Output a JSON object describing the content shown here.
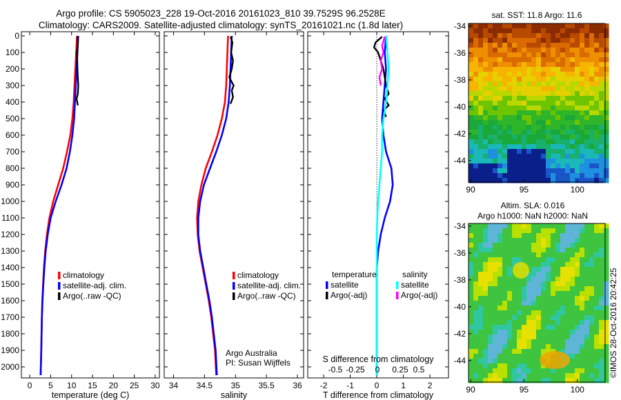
{
  "title_line1": "Argo profile: CS 5905023_228 19-Oct-2016 20161023_810 39.7529S 96.2528E",
  "title_line2": "Climatology: CARS2009. Satellite-adjusted climatology: synTS_20161021.nc (1.8d later)",
  "watermark": "©IMOS 28-Oct-2016 20:42:25",
  "colors": {
    "climatology": "#ff0000",
    "satellite": "#0000ff",
    "argo": "#000000",
    "cyan": "#00ffff",
    "magenta": "#ff00ff"
  },
  "chart_data": [
    {
      "type": "line",
      "name": "temperature-profile",
      "xlabel": "temperature (deg C)",
      "ylabel": "",
      "xlim": [
        -2,
        31
      ],
      "ylim": [
        2050,
        0
      ],
      "xticks": [
        0,
        5,
        10,
        15,
        20,
        25,
        30
      ],
      "yticks": [
        0,
        100,
        200,
        300,
        400,
        500,
        600,
        700,
        800,
        900,
        1000,
        1100,
        1200,
        1300,
        1400,
        1500,
        1600,
        1700,
        1800,
        1900,
        2000
      ],
      "legend": [
        "climatology",
        "satellite-adj. clim.",
        "Argo(..raw -QC)"
      ],
      "series": [
        {
          "name": "climatology",
          "color": "#ff0000",
          "x": [
            11.3,
            11.2,
            11.1,
            10.9,
            10.7,
            10.5,
            10.2,
            9.7,
            8.9,
            8.0,
            6.8,
            5.6,
            4.7,
            4.1,
            3.7,
            3.4,
            3.2,
            3.0,
            2.9,
            2.75,
            2.6
          ],
          "y": [
            0,
            50,
            100,
            200,
            300,
            400,
            500,
            600,
            700,
            800,
            900,
            1000,
            1100,
            1200,
            1300,
            1400,
            1500,
            1600,
            1700,
            1900,
            2050
          ]
        },
        {
          "name": "satellite-adj. clim.",
          "color": "#0000ff",
          "x": [
            11.6,
            11.5,
            11.4,
            11.2,
            11.0,
            10.8,
            10.6,
            10.2,
            9.6,
            8.8,
            7.6,
            6.2,
            5.0,
            4.3,
            3.8,
            3.5,
            3.25,
            3.05,
            2.9,
            2.75,
            2.6
          ],
          "y": [
            0,
            50,
            100,
            200,
            300,
            400,
            500,
            600,
            700,
            800,
            900,
            1000,
            1100,
            1200,
            1300,
            1400,
            1500,
            1600,
            1700,
            1900,
            2050
          ]
        },
        {
          "name": "Argo(..raw -QC)",
          "color": "#000000",
          "x": [
            11.4,
            11.5,
            11.3,
            11.4,
            11.6,
            11.5,
            11.2,
            11.5
          ],
          "y": [
            5,
            50,
            100,
            200,
            300,
            350,
            380,
            420
          ]
        }
      ]
    },
    {
      "type": "line",
      "name": "salinity-profile",
      "xlabel": "salinity",
      "xlim": [
        33.85,
        36.1
      ],
      "ylim": [
        2050,
        0
      ],
      "xticks": [
        34,
        34.5,
        35,
        35.5,
        36
      ],
      "legend": [
        "climatology",
        "satellite-adj. clim.",
        "Argo(..raw -QC)"
      ],
      "annotation": [
        "Argo Australia",
        "PI: Susan Wijffels"
      ],
      "series": [
        {
          "name": "climatology",
          "color": "#ff0000",
          "x": [
            34.88,
            34.87,
            34.86,
            34.85,
            34.83,
            34.78,
            34.71,
            34.62,
            34.52,
            34.45,
            34.4,
            34.38,
            34.39,
            34.42,
            34.47,
            34.52,
            34.57,
            34.61,
            34.64,
            34.67,
            34.69
          ],
          "y": [
            0,
            100,
            200,
            300,
            400,
            500,
            600,
            700,
            800,
            900,
            1000,
            1100,
            1200,
            1300,
            1400,
            1500,
            1600,
            1700,
            1800,
            1900,
            2050
          ]
        },
        {
          "name": "satellite-adj. clim.",
          "color": "#0000ff",
          "x": [
            34.94,
            34.93,
            34.92,
            34.91,
            34.89,
            34.85,
            34.78,
            34.69,
            34.59,
            34.49,
            34.43,
            34.4,
            34.4,
            34.43,
            34.48,
            34.53,
            34.58,
            34.62,
            34.65,
            34.68,
            34.7
          ],
          "y": [
            0,
            100,
            200,
            300,
            400,
            500,
            600,
            700,
            800,
            900,
            1000,
            1100,
            1200,
            1300,
            1400,
            1500,
            1600,
            1700,
            1800,
            1900,
            2050
          ]
        },
        {
          "name": "Argo(..raw -QC)",
          "color": "#000000",
          "x": [
            34.92,
            34.95,
            34.93,
            34.96,
            34.94,
            34.9,
            34.97,
            34.94,
            34.96,
            34.92
          ],
          "y": [
            5,
            40,
            100,
            150,
            200,
            250,
            300,
            330,
            370,
            410
          ]
        }
      ]
    },
    {
      "type": "line",
      "name": "difference-profile",
      "xlabel": "T difference from climatology",
      "x2label": "S difference from climatology",
      "xlim": [
        -2.6,
        2.7
      ],
      "ylim": [
        2050,
        0
      ],
      "xticks": [
        -2,
        -1,
        0,
        1,
        2
      ],
      "x2ticks": [
        "-0.5",
        "-0.25",
        "0",
        "0.25",
        "0.5"
      ],
      "legend_groups": [
        {
          "title": "temperature",
          "items": [
            "satellite",
            "Argo(-adj)"
          ]
        },
        {
          "title": "salinity",
          "items": [
            "satellite",
            "Argo(-adj)"
          ]
        }
      ],
      "series": [
        {
          "name": "temperature satellite",
          "color": "#0000ff",
          "x": [
            0.35,
            0.3,
            0.35,
            0.3,
            0.25,
            0.2,
            0.25,
            0.35,
            0.55,
            0.6,
            0.5,
            0.3,
            0.15,
            0.05,
            0.0,
            0.0,
            0.0,
            0.0,
            0.0,
            0.0,
            0.0
          ],
          "y": [
            0,
            100,
            200,
            300,
            400,
            500,
            600,
            700,
            800,
            900,
            1000,
            1100,
            1200,
            1300,
            1400,
            1500,
            1600,
            1700,
            1800,
            1900,
            2050
          ]
        },
        {
          "name": "temperature Argo(-adj)",
          "color": "#000000",
          "x": [
            0.2,
            -0.05,
            -0.1,
            0.05,
            0.25,
            0.35,
            0.45,
            0.3,
            0.45,
            0.25,
            0.35
          ],
          "y": [
            5,
            40,
            70,
            100,
            200,
            300,
            350,
            380,
            420,
            450,
            490
          ]
        },
        {
          "name": "salinity satellite",
          "color": "#00ffff",
          "x": [
            0.35,
            0.4,
            0.45,
            0.4,
            0.35,
            0.25,
            0.2,
            0.2,
            0.15,
            0.1,
            0.05,
            0.02,
            0.0,
            0.0,
            0.0,
            0.0,
            0.0,
            0.0,
            0.0
          ],
          "y": [
            0,
            100,
            200,
            300,
            400,
            500,
            600,
            700,
            800,
            900,
            1000,
            1100,
            1200,
            1300,
            1400,
            1500,
            1600,
            1800,
            2050
          ]
        },
        {
          "name": "salinity Argo(-adj)",
          "color": "#ff00ff",
          "x": [
            0.3,
            0.2,
            0.25,
            0.15,
            0.2,
            0.1,
            0.15
          ],
          "y": [
            5,
            60,
            100,
            150,
            200,
            250,
            300
          ]
        }
      ]
    },
    {
      "type": "heatmap",
      "name": "sst-map",
      "title": "sat. SST: 11.8 Argo: 11.6",
      "xticks": [
        90,
        95,
        100
      ],
      "yticks": [
        -34,
        -36,
        -38,
        -40,
        -42,
        -44
      ],
      "xlim": [
        89.8,
        102.6
      ],
      "ylim": [
        -45.6,
        -33.8
      ]
    },
    {
      "type": "heatmap",
      "name": "sla-map",
      "title_lines": [
        "Altim. SLA: 0.016",
        "Argo h1000: NaN h2000: NaN"
      ],
      "xticks": [
        90,
        95,
        100
      ],
      "yticks": [
        -34,
        -36,
        -38,
        -40,
        -42,
        -44
      ],
      "xlim": [
        89.8,
        102.6
      ],
      "ylim": [
        -45.6,
        -33.8
      ]
    }
  ]
}
